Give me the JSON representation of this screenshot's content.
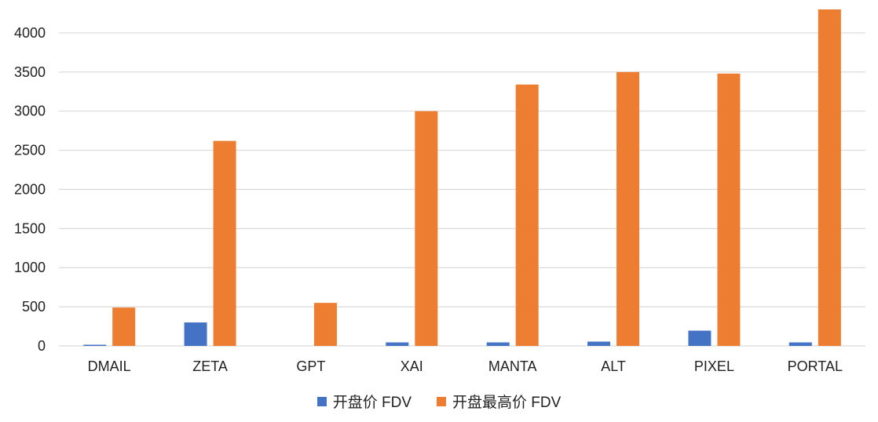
{
  "chart_data": {
    "type": "bar",
    "categories": [
      "DMAIL",
      "ZETA",
      "GPT",
      "XAI",
      "MANTA",
      "ALT",
      "PIXEL",
      "PORTAL"
    ],
    "series": [
      {
        "name": "开盘价 FDV",
        "color": "#4472C4",
        "values": [
          15,
          300,
          0,
          45,
          45,
          55,
          195,
          45
        ]
      },
      {
        "name": "开盘最高价 FDV",
        "color": "#ED7D31",
        "values": [
          490,
          2620,
          550,
          3000,
          3340,
          3500,
          3480,
          4300
        ]
      }
    ],
    "ylim": [
      0,
      4300
    ],
    "yticks": [
      0,
      500,
      1000,
      1500,
      2000,
      2500,
      3000,
      3500,
      4000
    ],
    "grid": true,
    "legend_position": "bottom"
  }
}
